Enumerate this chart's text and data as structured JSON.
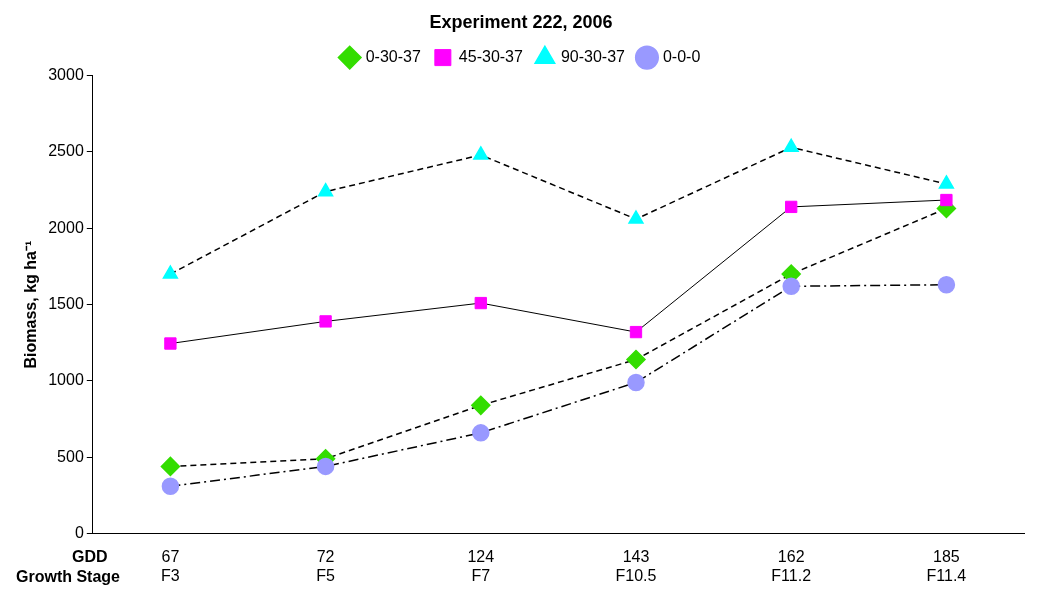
{
  "chart_data": {
    "type": "line",
    "title": "Experiment 222, 2006",
    "ylabel": "Biomass, kg ha⁻¹",
    "categories": [
      "67\nF3",
      "72\nF5",
      "124\nF7",
      "143\nF10.5",
      "162\nF11.2",
      "185\nF11.4"
    ],
    "annotations": [
      "GDD",
      "Growth Stage"
    ],
    "series": [
      {
        "name": "0-30-37",
        "color": "#33dd00",
        "marker": "diamond",
        "line_style": "dashed",
        "values": [
          440,
          490,
          840,
          1140,
          1700,
          2130
        ]
      },
      {
        "name": "45-30-37",
        "color": "#ff00ff",
        "marker": "square",
        "line_style": "solid",
        "values": [
          1245,
          1390,
          1510,
          1320,
          2140,
          2185
        ]
      },
      {
        "name": "90-30-37",
        "color": "#00ffff",
        "marker": "triangle",
        "line_style": "dashed",
        "values": [
          1700,
          2240,
          2480,
          2060,
          2530,
          2290
        ]
      },
      {
        "name": "0-0-0",
        "color": "#9999ff",
        "marker": "circle",
        "line_style": "dashdot",
        "values": [
          310,
          440,
          660,
          990,
          1620,
          1630
        ]
      }
    ],
    "ylim": [
      0,
      3000
    ],
    "yticks": [
      0,
      500,
      1000,
      1500,
      2000,
      2500,
      3000
    ],
    "grid": false,
    "legend": "top"
  }
}
